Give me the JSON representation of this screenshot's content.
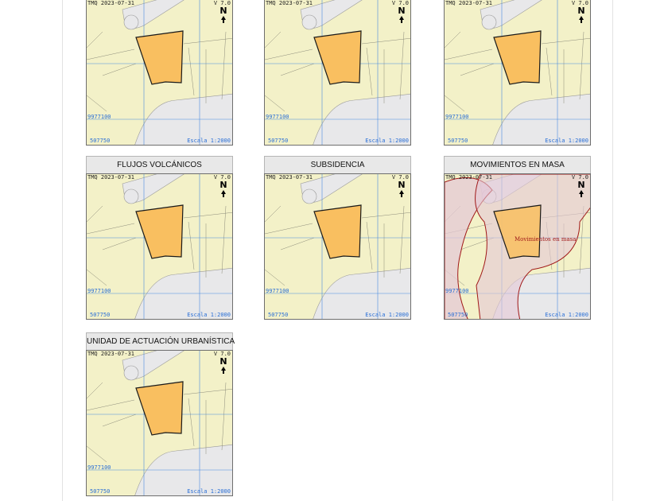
{
  "panels": [
    {
      "title": "",
      "has_title": false,
      "overlay": false
    },
    {
      "title": "",
      "has_title": false,
      "overlay": false
    },
    {
      "title": "",
      "has_title": false,
      "overlay": false
    },
    {
      "title": "FLUJOS VOLCÁNICOS",
      "has_title": true,
      "overlay": false
    },
    {
      "title": "SUBSIDENCIA",
      "has_title": true,
      "overlay": false
    },
    {
      "title": "MOVIMIENTOS EN MASA",
      "has_title": true,
      "overlay": true,
      "overlay_label": "Movimientos en masa"
    },
    {
      "title": "UNIDAD DE ACTUACIÓN URBANÍSTICA",
      "has_title": true,
      "overlay": false
    }
  ],
  "map_labels": {
    "system": "TMQ",
    "date": "2023-07-31",
    "version": "V 7.0",
    "north": "N",
    "y_coord": "9977100",
    "x_coord": "507750",
    "scale": "Escala 1:2000"
  },
  "colors": {
    "map_background": "#f3f1c8",
    "parcel_fill": "#f9bf60",
    "road_fill": "#e8e8ea",
    "grid": "#4a8be0",
    "hazard_outline": "#a01818",
    "hazard_fill": "#e4c8d6"
  }
}
